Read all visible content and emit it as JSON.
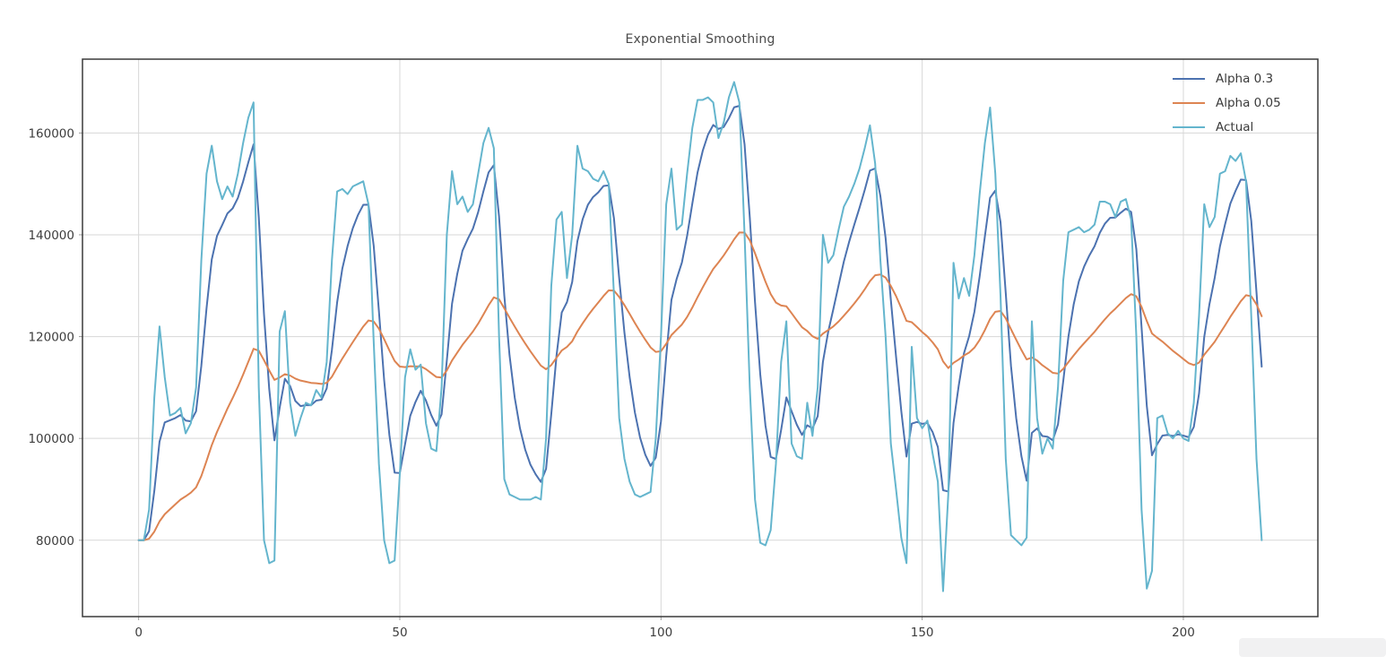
{
  "page": {
    "background": "#ffffff"
  },
  "chart": {
    "title": "Exponential Smoothing",
    "legend": {
      "position": "upper-right",
      "items": [
        {
          "label": "Alpha 0.3",
          "color": "#4c72b0"
        },
        {
          "label": "Alpha 0.05",
          "color": "#dd8452"
        },
        {
          "label": "Actual",
          "color": "#64b5cd"
        }
      ]
    },
    "colors": {
      "grid": "#d7d7d7",
      "spine": "#3a3a3a",
      "tick_label": "#3d3d3d",
      "title": "#4a4a4a"
    }
  },
  "chart_data": {
    "type": "line",
    "title": "Exponential Smoothing",
    "xlabel": "",
    "ylabel": "",
    "x_ticks": [
      0,
      50,
      100,
      150,
      200
    ],
    "y_ticks": [
      80000,
      100000,
      120000,
      140000,
      160000
    ],
    "xlim": [
      -10.75,
      225.75
    ],
    "ylim": [
      65000,
      174500
    ],
    "grid": true,
    "legend_position": "upper right",
    "x_start": 0,
    "x_step": 1,
    "smoothing_formula": "s[0]=actual[0]; s[t]=alpha*actual[t]+(1-alpha)*s[t-1]",
    "series": [
      {
        "name": "Alpha 0.3",
        "color": "#4c72b0",
        "derived_from": "Actual",
        "alpha": 0.3
      },
      {
        "name": "Alpha 0.05",
        "color": "#dd8452",
        "derived_from": "Actual",
        "alpha": 0.05
      },
      {
        "name": "Actual",
        "color": "#64b5cd",
        "values": [
          80000,
          80000,
          86000,
          108000,
          122000,
          112000,
          104500,
          105000,
          106000,
          101000,
          103000,
          110000,
          135000,
          152000,
          157500,
          150500,
          147000,
          149500,
          147500,
          152000,
          158000,
          163000,
          166000,
          110000,
          80000,
          75500,
          76000,
          121000,
          125000,
          107000,
          100500,
          104000,
          107000,
          106500,
          109500,
          108000,
          115000,
          135000,
          148500,
          149000,
          148000,
          149500,
          150000,
          150500,
          146000,
          119000,
          95000,
          80000,
          75500,
          76000,
          93000,
          112000,
          117500,
          113500,
          114500,
          103000,
          98000,
          97500,
          110000,
          140000,
          152500,
          146000,
          147500,
          144500,
          146000,
          152000,
          158000,
          161000,
          157000,
          120000,
          92000,
          89000,
          88500,
          88000,
          88000,
          88000,
          88500,
          88000,
          100000,
          130000,
          143000,
          144500,
          131500,
          140000,
          157500,
          153000,
          152500,
          151000,
          150500,
          152500,
          150000,
          128000,
          104000,
          96000,
          91500,
          89000,
          88500,
          89000,
          89500,
          100000,
          120000,
          146000,
          153000,
          141000,
          142000,
          152000,
          161000,
          166500,
          166500,
          167000,
          166000,
          159000,
          162000,
          167000,
          170000,
          166000,
          140000,
          110000,
          88000,
          79500,
          79000,
          82000,
          95000,
          115000,
          123000,
          99000,
          96500,
          96000,
          107000,
          100500,
          110000,
          140000,
          134500,
          136000,
          141000,
          145500,
          147500,
          150000,
          153000,
          157000,
          161500,
          154000,
          135000,
          120000,
          99000,
          90000,
          80500,
          75500,
          118000,
          104000,
          102000,
          103500,
          97000,
          91500,
          70000,
          89000,
          134500,
          127500,
          131500,
          128000,
          136000,
          148000,
          158000,
          165000,
          152000,
          128000,
          96000,
          81000,
          80000,
          79000,
          80500,
          123000,
          104000,
          97000,
          100000,
          98000,
          110000,
          131000,
          140500,
          141000,
          141500,
          140500,
          141000,
          142000,
          146500,
          146500,
          146000,
          143500,
          146500,
          147000,
          143000,
          120000,
          86000,
          70500,
          74000,
          104000,
          104500,
          101000,
          100000,
          101500,
          100000,
          99500,
          107000,
          124000,
          146000,
          141500,
          143500,
          152000,
          152500,
          155500,
          154500,
          156000,
          150500,
          124000,
          96000,
          80000
        ]
      }
    ]
  },
  "artifact": {
    "note": "light gray rounded strip, bottom right corner"
  }
}
